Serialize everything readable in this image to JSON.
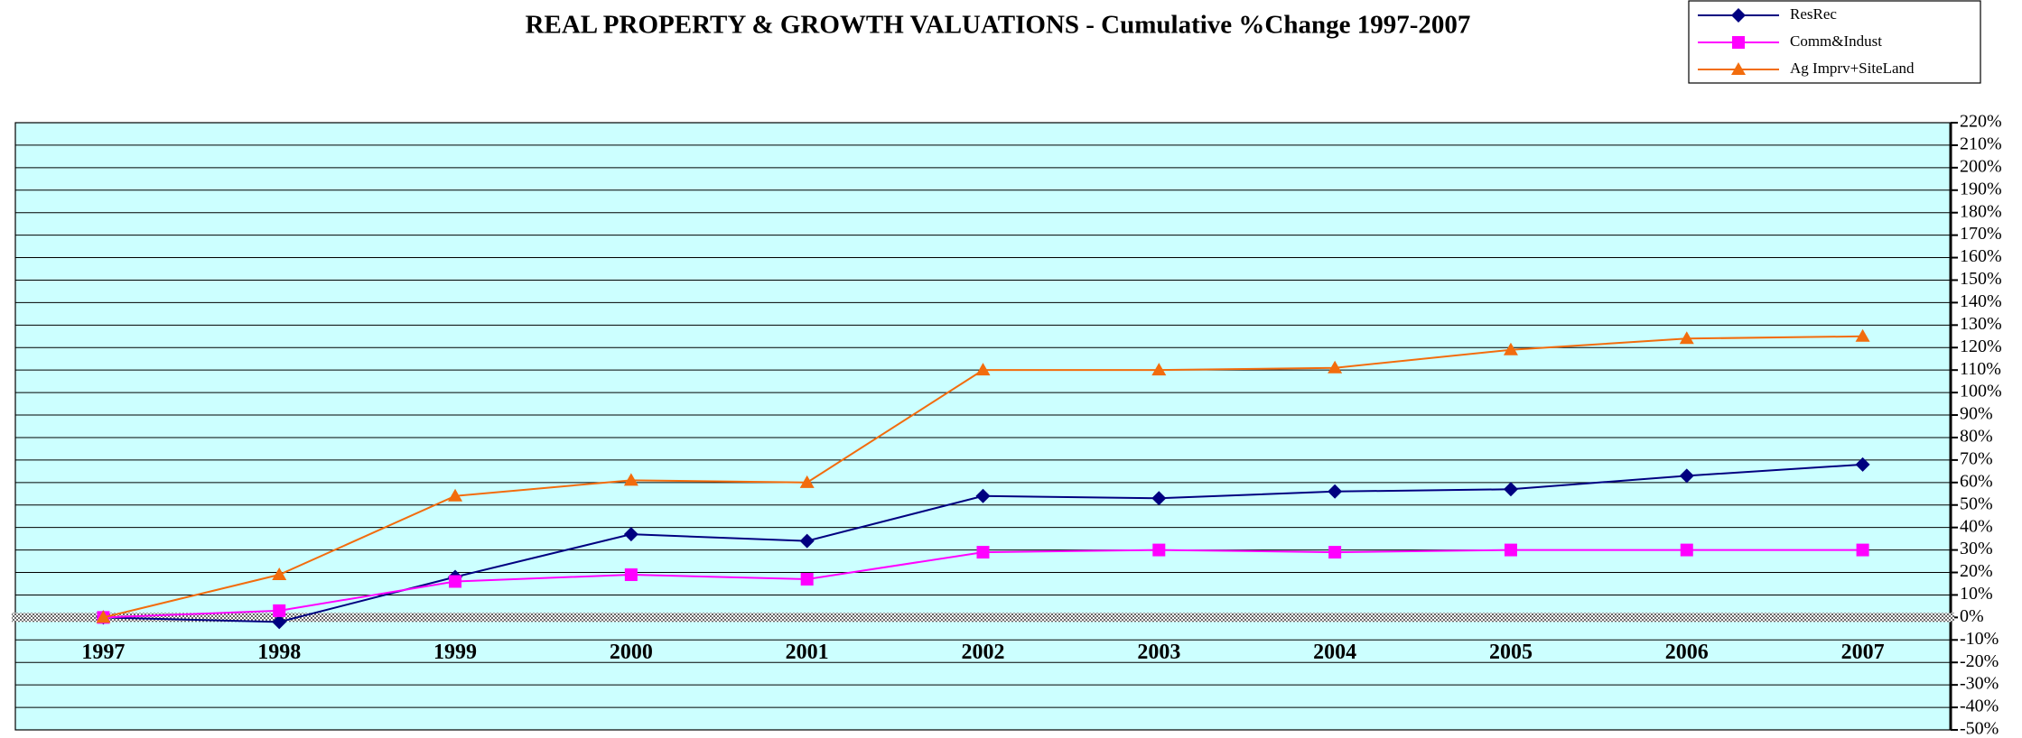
{
  "chart_data": {
    "type": "line",
    "title": "REAL PROPERTY & GROWTH VALUATIONS - Cumulative %Change 1997-2007",
    "categories": [
      "1997",
      "1998",
      "1999",
      "2000",
      "2001",
      "2002",
      "2003",
      "2004",
      "2005",
      "2006",
      "2007"
    ],
    "series": [
      {
        "name": "ResRec",
        "color": "#000080",
        "marker": "diamond",
        "values": [
          0,
          -2,
          18,
          37,
          34,
          54,
          53,
          56,
          57,
          63,
          68
        ]
      },
      {
        "name": "Comm&Indust",
        "color": "#ff00ff",
        "marker": "square",
        "values": [
          0,
          3,
          16,
          19,
          17,
          29,
          30,
          29,
          30,
          30,
          30
        ]
      },
      {
        "name": "Ag Imprv+SiteLand",
        "color": "#f26c0d",
        "marker": "triangle",
        "values": [
          0,
          19,
          54,
          61,
          60,
          110,
          110,
          111,
          119,
          124,
          125
        ]
      }
    ],
    "ylim": [
      -50,
      220
    ],
    "yticks": [
      {
        "value": -50,
        "label": "-50%"
      },
      {
        "value": -40,
        "label": "-40%"
      },
      {
        "value": -30,
        "label": "-30%"
      },
      {
        "value": -20,
        "label": "-20%"
      },
      {
        "value": -10,
        "label": "-10%"
      },
      {
        "value": 0,
        "label": "0%"
      },
      {
        "value": 10,
        "label": "10%"
      },
      {
        "value": 20,
        "label": "20%"
      },
      {
        "value": 30,
        "label": "30%"
      },
      {
        "value": 40,
        "label": "40%"
      },
      {
        "value": 50,
        "label": "50%"
      },
      {
        "value": 60,
        "label": "60%"
      },
      {
        "value": 70,
        "label": "70%"
      },
      {
        "value": 80,
        "label": "80%"
      },
      {
        "value": 90,
        "label": "90%"
      },
      {
        "value": 100,
        "label": "100%"
      },
      {
        "value": 110,
        "label": "110%"
      },
      {
        "value": 120,
        "label": "120%"
      },
      {
        "value": 130,
        "label": "130%"
      },
      {
        "value": 140,
        "label": "140%"
      },
      {
        "value": 150,
        "label": "150%"
      },
      {
        "value": 160,
        "label": "160%"
      },
      {
        "value": 170,
        "label": "170%"
      },
      {
        "value": 180,
        "label": "180%"
      },
      {
        "value": 190,
        "label": "190%"
      },
      {
        "value": 200,
        "label": "200%"
      },
      {
        "value": 210,
        "label": "210%"
      },
      {
        "value": 220,
        "label": "220%"
      }
    ],
    "grid": true,
    "legend": "top-right",
    "plot_background": "#ccffff"
  }
}
